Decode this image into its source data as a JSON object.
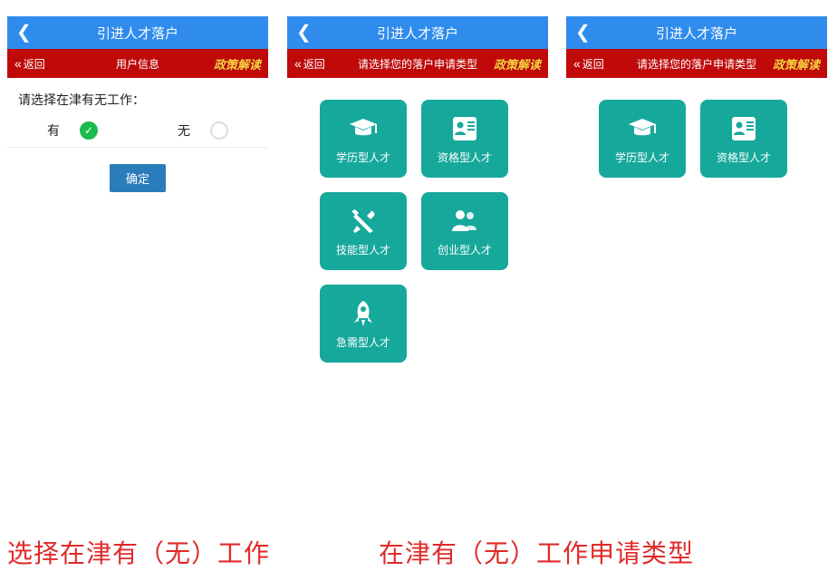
{
  "colors": {
    "header_blue": "#2f8cec",
    "header_red": "#c00a0a",
    "tile_teal": "#17a89c",
    "confirm_blue": "#2b7cba",
    "policy_yellow": "#ffd23f",
    "caption_red": "#e02a2a",
    "radio_green": "#1abc4b"
  },
  "header": {
    "title": "引进人才落户",
    "back_label": "返回",
    "policy_label": "政策解读"
  },
  "screen1": {
    "subtitle": "用户信息",
    "prompt": "请选择在津有无工作：",
    "option_yes": "有",
    "option_no": "无",
    "selected": "yes",
    "confirm": "确定"
  },
  "screen2": {
    "subtitle": "请选择您的落户申请类型",
    "tiles": [
      {
        "key": "edu",
        "label": "学历型人才",
        "icon": "grad-cap"
      },
      {
        "key": "qual",
        "label": "资格型人才",
        "icon": "id-card"
      },
      {
        "key": "skill",
        "label": "技能型人才",
        "icon": "tools"
      },
      {
        "key": "startup",
        "label": "创业型人才",
        "icon": "people"
      },
      {
        "key": "urgent",
        "label": "急需型人才",
        "icon": "rocket"
      }
    ]
  },
  "screen3": {
    "subtitle": "请选择您的落户申请类型",
    "tiles": [
      {
        "key": "edu",
        "label": "学历型人才",
        "icon": "grad-cap"
      },
      {
        "key": "qual",
        "label": "资格型人才",
        "icon": "id-card"
      }
    ]
  },
  "captions": {
    "left": "选择在津有（无）工作",
    "right": "在津有（无）工作申请类型"
  }
}
